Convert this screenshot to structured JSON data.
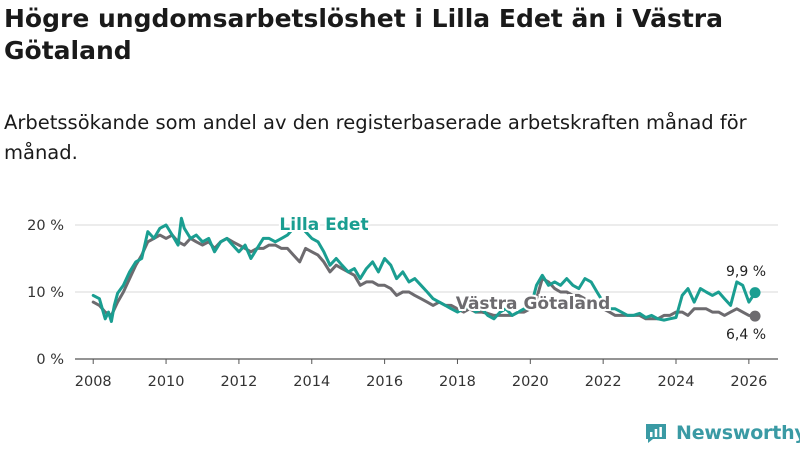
{
  "chart_data": {
    "type": "line",
    "title": "Högre ungdomsarbetslöshet i Lilla Edet än i Västra Götaland",
    "subtitle": "Arbetssökande som andel av den registerbaserade arbetskraften månad för månad.",
    "xlabel": "",
    "ylabel": "",
    "xlim": [
      2007.5,
      2026.8
    ],
    "ylim": [
      0,
      20
    ],
    "y_ticks": [
      0,
      10,
      20
    ],
    "y_tick_labels": [
      "0 %",
      "10 %",
      "20 %"
    ],
    "x_ticks": [
      2008,
      2010,
      2012,
      2014,
      2016,
      2018,
      2020,
      2022,
      2024,
      2026
    ],
    "x_tick_labels": [
      "2008",
      "2010",
      "2012",
      "2014",
      "2016",
      "2018",
      "2020",
      "2022",
      "2024",
      "2026"
    ],
    "grid": true,
    "series": [
      {
        "name": "Lilla Edet",
        "color": "#1a9e91",
        "end_label": "9,9 %",
        "x": [
          2008.0,
          2008.17,
          2008.33,
          2008.42,
          2008.5,
          2008.58,
          2008.67,
          2008.83,
          2009.0,
          2009.17,
          2009.33,
          2009.5,
          2009.67,
          2009.83,
          2010.0,
          2010.17,
          2010.33,
          2010.42,
          2010.5,
          2010.67,
          2010.83,
          2011.0,
          2011.17,
          2011.33,
          2011.5,
          2011.67,
          2011.83,
          2012.0,
          2012.17,
          2012.33,
          2012.5,
          2012.67,
          2012.83,
          2013.0,
          2013.17,
          2013.33,
          2013.5,
          2013.67,
          2013.83,
          2014.0,
          2014.17,
          2014.33,
          2014.5,
          2014.67,
          2014.83,
          2015.0,
          2015.17,
          2015.33,
          2015.5,
          2015.67,
          2015.83,
          2016.0,
          2016.17,
          2016.33,
          2016.5,
          2016.67,
          2016.83,
          2017.0,
          2017.17,
          2017.33,
          2017.5,
          2017.67,
          2017.83,
          2018.0,
          2018.17,
          2018.33,
          2018.5,
          2018.67,
          2018.83,
          2019.0,
          2019.17,
          2019.33,
          2019.5,
          2019.67,
          2019.83,
          2020.0,
          2020.17,
          2020.33,
          2020.5,
          2020.67,
          2020.83,
          2021.0,
          2021.17,
          2021.33,
          2021.5,
          2021.67,
          2021.83,
          2022.0,
          2022.17,
          2022.33,
          2022.5,
          2022.67,
          2022.83,
          2023.0,
          2023.17,
          2023.33,
          2023.5,
          2023.67,
          2023.83,
          2024.0,
          2024.17,
          2024.33,
          2024.5,
          2024.67,
          2024.83,
          2025.0,
          2025.17,
          2025.33,
          2025.5,
          2025.67,
          2025.83,
          2026.0,
          2026.17
        ],
        "values": [
          9.5,
          9.0,
          6.0,
          7.0,
          5.6,
          8.0,
          9.8,
          11.0,
          13.0,
          14.5,
          15.0,
          19.0,
          18.0,
          19.5,
          20.0,
          18.5,
          17.0,
          21.0,
          19.5,
          18.0,
          18.5,
          17.5,
          18.0,
          16.0,
          17.5,
          18.0,
          17.0,
          16.0,
          17.0,
          15.0,
          16.5,
          18.0,
          18.0,
          17.5,
          18.0,
          18.5,
          19.5,
          20.0,
          19.0,
          18.0,
          17.5,
          16.0,
          14.0,
          15.0,
          14.0,
          13.0,
          13.5,
          12.0,
          13.5,
          14.5,
          13.0,
          15.0,
          14.0,
          12.0,
          13.0,
          11.5,
          12.0,
          11.0,
          10.0,
          9.0,
          8.5,
          8.0,
          7.5,
          7.0,
          7.5,
          8.0,
          7.0,
          7.5,
          6.5,
          6.0,
          7.0,
          7.5,
          6.5,
          7.0,
          7.5,
          7.5,
          11.0,
          12.5,
          11.0,
          11.5,
          11.0,
          12.0,
          11.0,
          10.5,
          12.0,
          11.5,
          10.0,
          8.5,
          7.5,
          7.5,
          7.0,
          6.5,
          6.5,
          6.8,
          6.2,
          6.5,
          6.0,
          5.8,
          6.0,
          6.2,
          9.5,
          10.5,
          8.5,
          10.5,
          10.0,
          9.5,
          10.0,
          9.0,
          8.0,
          11.5,
          11.0,
          8.5,
          9.9
        ]
      },
      {
        "name": "Västra Götaland",
        "color": "#6d6b6f",
        "end_label": "6,4 %",
        "x": [
          2008.0,
          2008.17,
          2008.33,
          2008.5,
          2008.67,
          2008.83,
          2009.0,
          2009.17,
          2009.33,
          2009.5,
          2009.67,
          2009.83,
          2010.0,
          2010.17,
          2010.33,
          2010.5,
          2010.67,
          2010.83,
          2011.0,
          2011.17,
          2011.33,
          2011.5,
          2011.67,
          2011.83,
          2012.0,
          2012.17,
          2012.33,
          2012.5,
          2012.67,
          2012.83,
          2013.0,
          2013.17,
          2013.33,
          2013.5,
          2013.67,
          2013.83,
          2014.0,
          2014.17,
          2014.33,
          2014.5,
          2014.67,
          2014.83,
          2015.0,
          2015.17,
          2015.33,
          2015.5,
          2015.67,
          2015.83,
          2016.0,
          2016.17,
          2016.33,
          2016.5,
          2016.67,
          2016.83,
          2017.0,
          2017.17,
          2017.33,
          2017.5,
          2017.67,
          2017.83,
          2018.0,
          2018.17,
          2018.33,
          2018.5,
          2018.67,
          2018.83,
          2019.0,
          2019.17,
          2019.33,
          2019.5,
          2019.67,
          2019.83,
          2020.0,
          2020.17,
          2020.33,
          2020.5,
          2020.67,
          2020.83,
          2021.0,
          2021.17,
          2021.33,
          2021.5,
          2021.67,
          2021.83,
          2022.0,
          2022.17,
          2022.33,
          2022.5,
          2022.67,
          2022.83,
          2023.0,
          2023.17,
          2023.33,
          2023.5,
          2023.67,
          2023.83,
          2024.0,
          2024.17,
          2024.33,
          2024.5,
          2024.67,
          2024.83,
          2025.0,
          2025.17,
          2025.33,
          2025.5,
          2025.67,
          2025.83,
          2026.0,
          2026.17
        ],
        "values": [
          8.5,
          8.0,
          7.0,
          6.5,
          8.5,
          10.0,
          12.0,
          14.0,
          15.5,
          17.5,
          18.0,
          18.5,
          18.0,
          18.5,
          17.5,
          17.0,
          18.0,
          17.5,
          17.0,
          17.5,
          16.5,
          17.5,
          18.0,
          17.5,
          17.0,
          16.5,
          16.0,
          16.5,
          16.5,
          17.0,
          17.0,
          16.5,
          16.5,
          15.5,
          14.5,
          16.5,
          16.0,
          15.5,
          14.5,
          13.0,
          14.0,
          13.5,
          13.0,
          12.5,
          11.0,
          11.5,
          11.5,
          11.0,
          11.0,
          10.5,
          9.5,
          10.0,
          10.0,
          9.5,
          9.0,
          8.5,
          8.0,
          8.5,
          8.0,
          8.0,
          7.5,
          7.0,
          7.5,
          7.0,
          7.0,
          6.8,
          6.5,
          6.5,
          6.5,
          6.5,
          7.0,
          7.0,
          7.5,
          9.0,
          12.0,
          11.5,
          10.5,
          10.0,
          10.0,
          9.5,
          9.5,
          9.0,
          8.5,
          8.0,
          7.5,
          7.0,
          6.5,
          6.5,
          6.5,
          6.5,
          6.5,
          6.0,
          6.0,
          6.0,
          6.5,
          6.5,
          7.0,
          7.0,
          6.5,
          7.5,
          7.5,
          7.5,
          7.0,
          7.0,
          6.5,
          7.0,
          7.5,
          7.0,
          6.5,
          6.4
        ]
      }
    ]
  },
  "brand": {
    "name": "Newsworthy",
    "color": "#3a9aa4"
  }
}
